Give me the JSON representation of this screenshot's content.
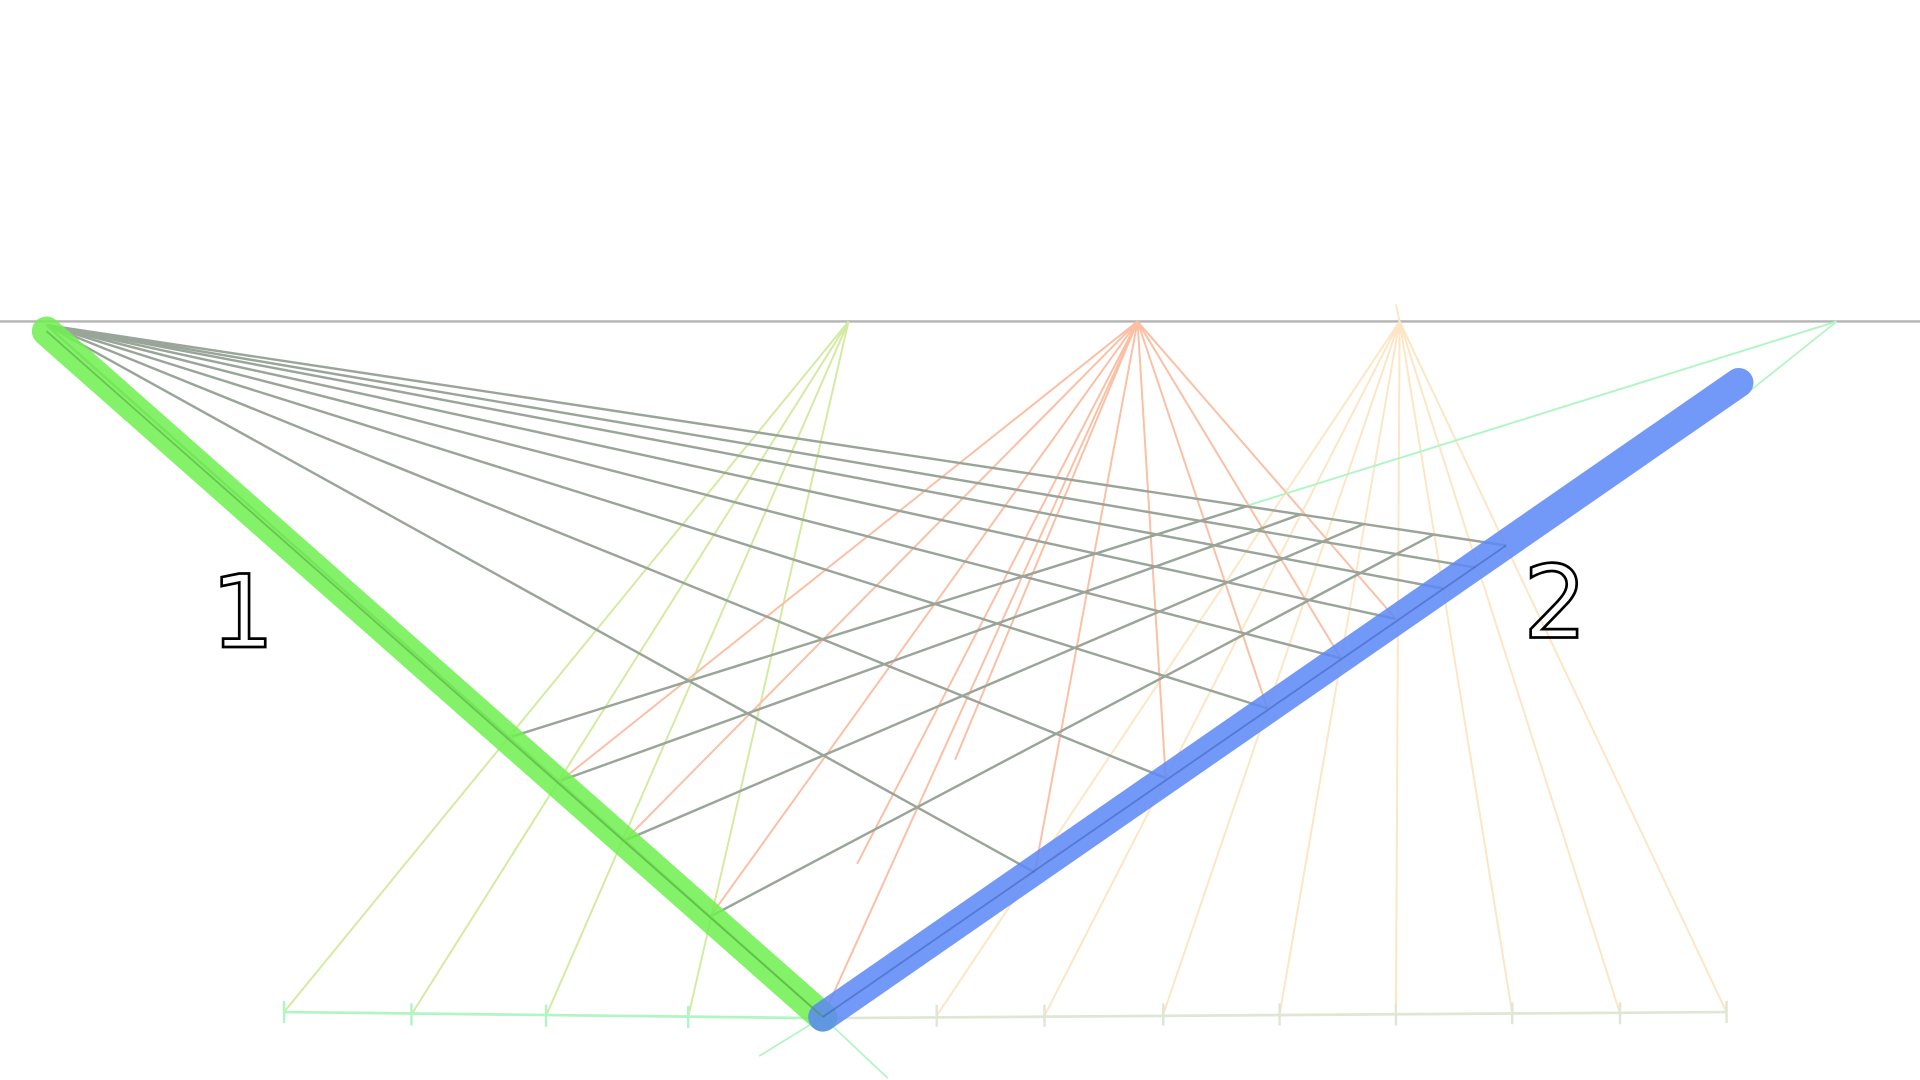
{
  "labels": {
    "left": "1",
    "right": "2"
  },
  "colors": {
    "horizon": "#b4b4b4",
    "grid": "#9aa59a",
    "line_1": "#6ef04f",
    "line_2": "#5a87f7",
    "fan_green": "#d4eaa0",
    "fan_orange": "#fbbfa4",
    "fan_peach": "#fce6c4",
    "construction": "#b0f5c4",
    "measure_right": "#dfe6d4"
  }
}
